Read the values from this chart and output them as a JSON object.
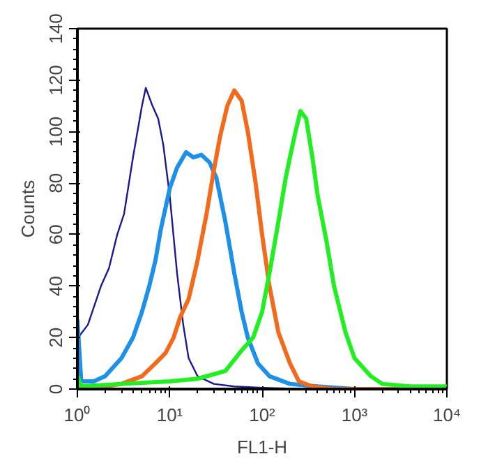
{
  "chart_data": {
    "type": "line",
    "xlabel": "FL1-H",
    "ylabel": "Counts",
    "log": "x",
    "grid": false,
    "marker": "none",
    "line_style": "solid",
    "xlim": [
      1,
      10000
    ],
    "xticks": [
      {
        "value": 1,
        "label": "10⁰"
      },
      {
        "value": 10,
        "label": "10¹"
      },
      {
        "value": 100,
        "label": "10²"
      },
      {
        "value": 1000,
        "label": "10³"
      },
      {
        "value": 10000,
        "label": "10⁴"
      }
    ],
    "ylim": [
      0,
      140
    ],
    "yticks": [
      0,
      20,
      40,
      60,
      80,
      100,
      120,
      140
    ],
    "series": [
      {
        "color": "#1a1a8c",
        "x": [
          1,
          1.02,
          1.3,
          1.8,
          2.2,
          2.7,
          3.2,
          4,
          5,
          5.5,
          6.5,
          7.5,
          8.5,
          10,
          12,
          14,
          16,
          20,
          30,
          50,
          100,
          300,
          10000
        ],
        "values": [
          80,
          20,
          25,
          40,
          47,
          60,
          68,
          90,
          110,
          117,
          110,
          105,
          95,
          75,
          45,
          25,
          12,
          5,
          2,
          1,
          0.5,
          0,
          0
        ]
      },
      {
        "color": "#1e90e8",
        "x": [
          1,
          1.1,
          1.5,
          2,
          3,
          4,
          5,
          6,
          7,
          8,
          10,
          12,
          15,
          18,
          22,
          27,
          32,
          40,
          50,
          60,
          70,
          90,
          120,
          200,
          400,
          1000,
          10000
        ],
        "values": [
          27,
          3,
          3,
          5,
          12,
          20,
          30,
          40,
          50,
          62,
          78,
          86,
          92,
          90,
          91,
          88,
          82,
          65,
          45,
          30,
          20,
          10,
          5,
          2,
          1,
          0,
          0
        ]
      },
      {
        "color": "#f26b1d",
        "x": [
          1,
          2,
          3,
          5,
          7,
          9,
          11,
          13,
          16,
          20,
          25,
          30,
          35,
          42,
          50,
          60,
          70,
          85,
          100,
          120,
          150,
          200,
          250,
          350,
          600,
          10000
        ],
        "values": [
          0,
          1,
          2,
          5,
          10,
          14,
          20,
          28,
          35,
          50,
          68,
          85,
          98,
          110,
          116,
          112,
          100,
          80,
          60,
          40,
          22,
          10,
          3,
          1,
          0,
          0
        ]
      },
      {
        "color": "#22ee22",
        "x": [
          1,
          1.1,
          3,
          10,
          20,
          40,
          60,
          80,
          100,
          120,
          150,
          180,
          200,
          230,
          260,
          300,
          350,
          400,
          500,
          600,
          800,
          1000,
          1500,
          2000,
          4000,
          10000
        ],
        "values": [
          5,
          1,
          2,
          3,
          4,
          7,
          15,
          20,
          30,
          45,
          65,
          82,
          90,
          100,
          108,
          105,
          90,
          75,
          57,
          40,
          22,
          12,
          5,
          2,
          1,
          1
        ]
      }
    ]
  }
}
